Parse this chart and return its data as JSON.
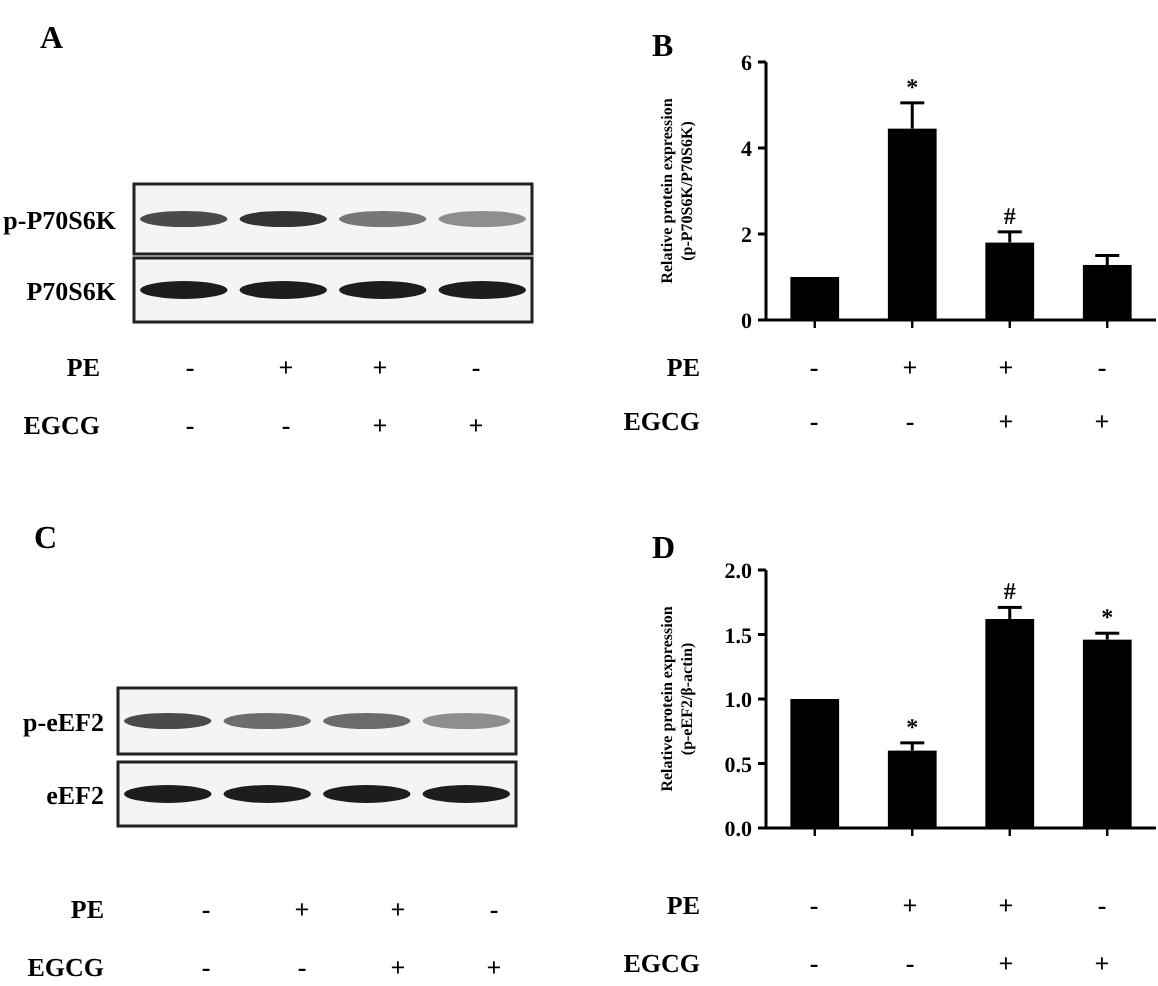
{
  "chart_data": [
    {
      "type": "other",
      "title": "A",
      "annotations": [
        "p-P70S6K",
        "P70S6K",
        "PE",
        "-",
        "+",
        "+",
        "-",
        "EGCG",
        "-",
        "-",
        "+",
        "+"
      ]
    },
    {
      "type": "bar",
      "title": "B",
      "ylabel": "Relative protein expression\n(p-P70S6K/P70S6K)",
      "categories": [
        null,
        null,
        null,
        null
      ],
      "values": [
        1.0,
        4.45,
        1.8,
        1.28
      ],
      "errors": [
        null,
        0.6,
        0.25,
        0.22
      ],
      "value_labels": [
        null,
        "*",
        "#",
        null
      ],
      "color": "#000000",
      "ylim": [
        0,
        6
      ],
      "yticks": [
        0,
        2,
        4,
        6
      ],
      "grid": false,
      "annotations": [
        "PE",
        "-",
        "+",
        "+",
        "-",
        "EGCG",
        "-",
        "-",
        "+",
        "+"
      ]
    },
    {
      "type": "other",
      "title": "C",
      "annotations": [
        "p-eEF2",
        "eEF2",
        "PE",
        "-",
        "+",
        "+",
        "-",
        "EGCG",
        "-",
        "-",
        "+",
        "+"
      ]
    },
    {
      "type": "bar",
      "title": "D",
      "ylabel": "Relative protein expression\n(p-eEF2/β-actin)",
      "categories": [
        null,
        null,
        null,
        null
      ],
      "values": [
        1.0,
        0.6,
        1.62,
        1.46
      ],
      "errors": [
        null,
        0.06,
        0.09,
        0.05
      ],
      "value_labels": [
        null,
        "*",
        "#",
        "*"
      ],
      "color": "#000000",
      "ylim": [
        0,
        2
      ],
      "yticks": [
        {
          "value": 0,
          "label": "0.0"
        },
        {
          "value": 0.5,
          "label": "0.5"
        },
        {
          "value": 1,
          "label": "1.0"
        },
        {
          "value": 1.5,
          "label": "1.5"
        },
        {
          "value": 2,
          "label": "2.0"
        }
      ],
      "grid": false,
      "annotations": [
        "PE",
        "-",
        "+",
        "+",
        "-",
        "EGCG",
        "-",
        "-",
        "+",
        "+"
      ]
    }
  ]
}
